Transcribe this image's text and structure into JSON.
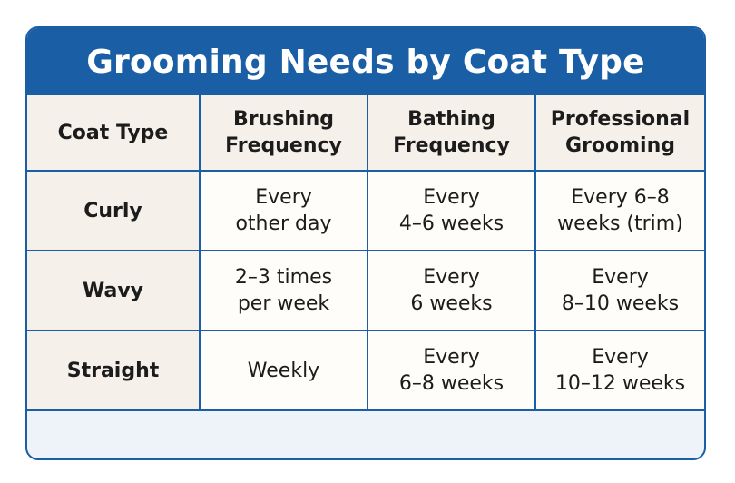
{
  "title": "Grooming Needs by Coat Type",
  "columns": {
    "coat_type": "Coat Type",
    "brushing": [
      "Brushing",
      "Frequency"
    ],
    "bathing": [
      "Bathing",
      "Frequency"
    ],
    "professional": [
      "Professional",
      "Grooming"
    ]
  },
  "rows": [
    {
      "coat": "Curly",
      "brushing": [
        "Every",
        "other day"
      ],
      "bathing": [
        "Every",
        "4–6 weeks"
      ],
      "professional": [
        "Every 6–8",
        "weeks (trim)"
      ]
    },
    {
      "coat": "Wavy",
      "brushing": [
        "2–3 times",
        "per week"
      ],
      "bathing": [
        "Every",
        "6 weeks"
      ],
      "professional": [
        "Every",
        "8–10 weeks"
      ]
    },
    {
      "coat": "Straight",
      "brushing": [
        "Weekly"
      ],
      "bathing": [
        "Every",
        "6–8 weeks"
      ],
      "professional": [
        "Every",
        "10–12 weeks"
      ]
    }
  ],
  "colors": {
    "accent": "#1a5ea6",
    "header_fill": "#f5f0e9",
    "cell_fill": "#fffdf9"
  }
}
